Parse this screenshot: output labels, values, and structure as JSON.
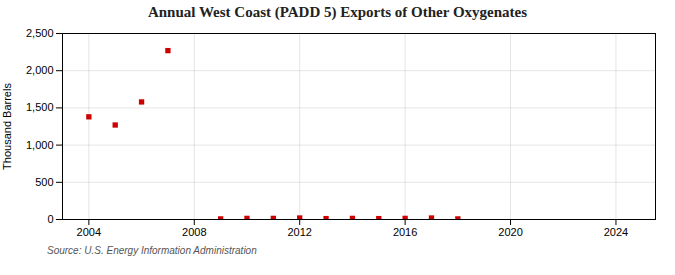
{
  "chart_data": {
    "type": "scatter",
    "title": "Annual West Coast (PADD 5) Exports of Other Oxygenates",
    "ylabel": "Thousand Barrels",
    "source": "Source: U.S. Energy Information Administration",
    "x": [
      2004,
      2005,
      2006,
      2007,
      2009,
      2010,
      2011,
      2012,
      2013,
      2014,
      2015,
      2016,
      2017,
      2018
    ],
    "values": [
      1380,
      1270,
      1580,
      2270,
      8,
      15,
      15,
      20,
      12,
      15,
      12,
      15,
      20,
      8
    ],
    "color": "#cc0000",
    "marker": "square",
    "xlim": [
      2003,
      2025.5
    ],
    "xticks": [
      2004,
      2008,
      2012,
      2016,
      2020,
      2024
    ],
    "ylim": [
      0,
      2500
    ],
    "yticks": [
      0,
      500,
      {
        "value": 1000,
        "label": "1,000"
      },
      {
        "value": 1500,
        "label": "1,500"
      },
      {
        "value": 2000,
        "label": "2,000"
      },
      {
        "value": 2500,
        "label": "2,500"
      }
    ],
    "grid": true
  }
}
